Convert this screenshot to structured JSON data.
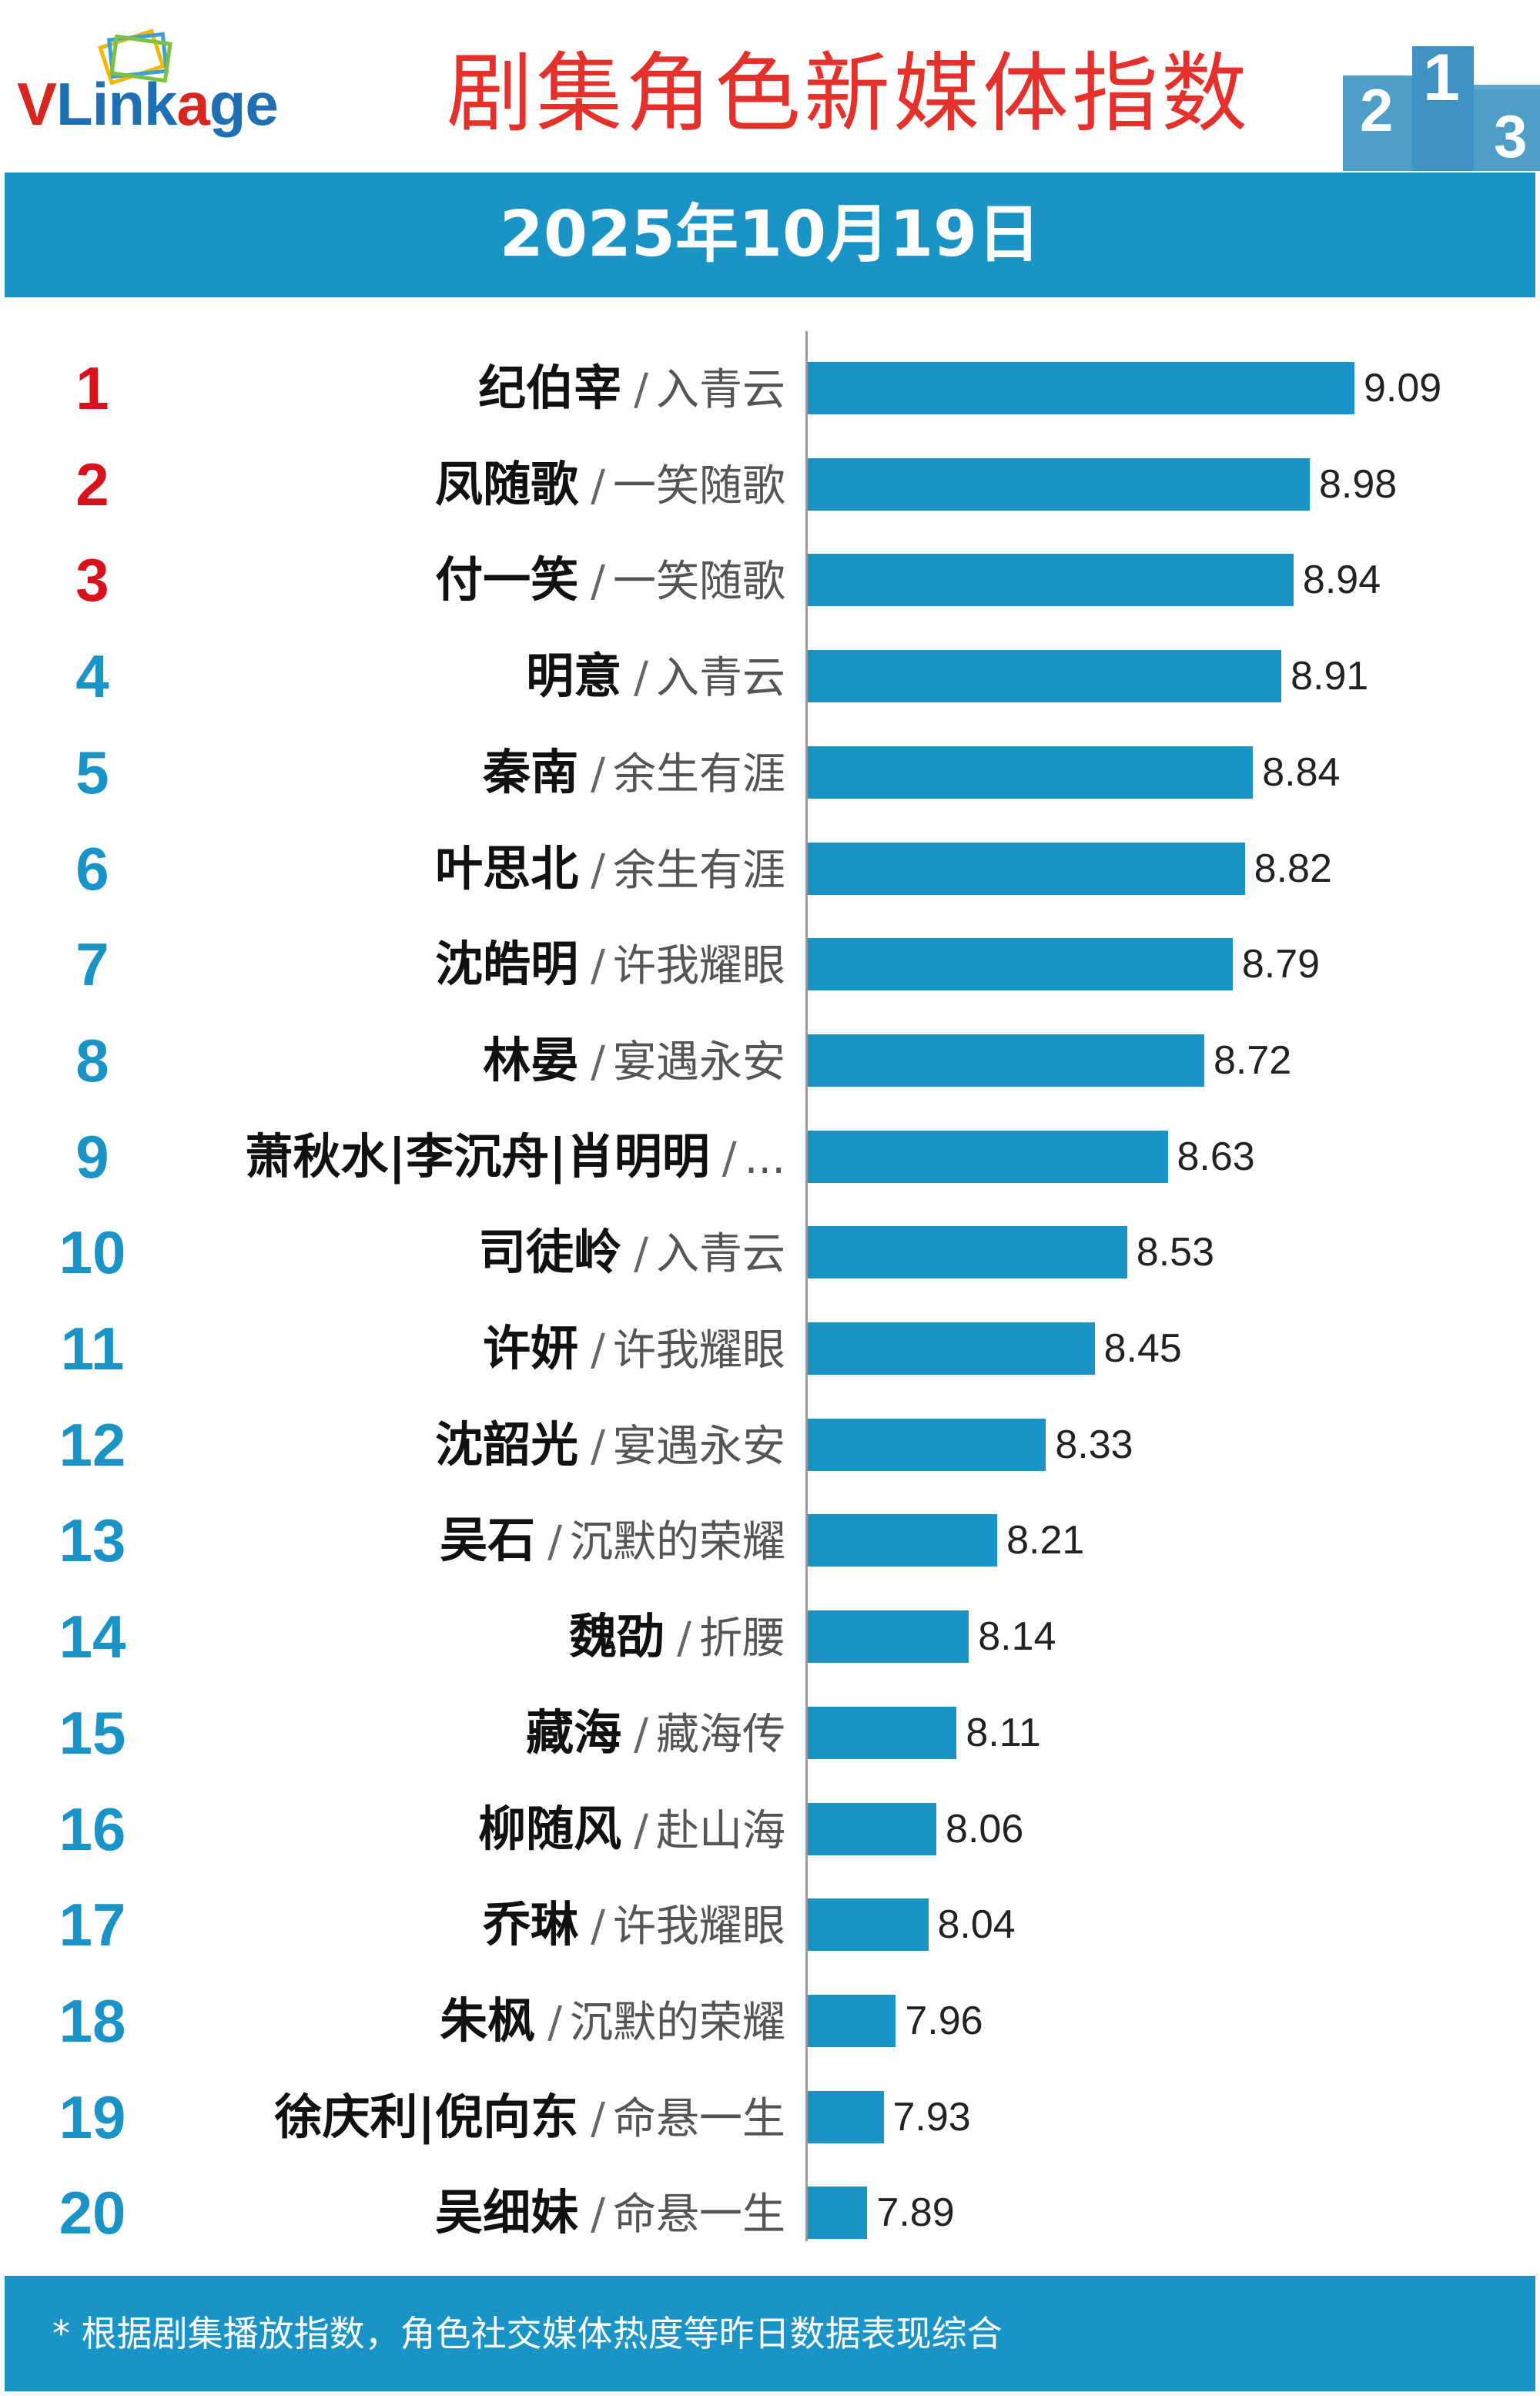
{
  "header": {
    "logo_text": "VLinkage",
    "title": "剧集角色新媒体指数",
    "date": "2025年10月19日"
  },
  "colors": {
    "accent": "#1a94c6",
    "title_red": "#e5312b",
    "top_rank_red": "#d7121c"
  },
  "footer": {
    "note": "* 根据剧集播放指数，角色社交媒体热度等昨日数据表现综合"
  },
  "chart_data": {
    "type": "bar",
    "orientation": "horizontal",
    "xlim": [
      0,
      9.09
    ],
    "rows": [
      {
        "rank": "1",
        "name": "纪伯宰",
        "show": "入青云",
        "value": 9.09
      },
      {
        "rank": "2",
        "name": "凤随歌",
        "show": "一笑随歌",
        "value": 8.98
      },
      {
        "rank": "3",
        "name": "付一笑",
        "show": "一笑随歌",
        "value": 8.94
      },
      {
        "rank": "4",
        "name": "明意",
        "show": "入青云",
        "value": 8.91
      },
      {
        "rank": "5",
        "name": "秦南",
        "show": "余生有涯",
        "value": 8.84
      },
      {
        "rank": "6",
        "name": "叶思北",
        "show": "余生有涯",
        "value": 8.82
      },
      {
        "rank": "7",
        "name": "沈皓明",
        "show": "许我耀眼",
        "value": 8.79
      },
      {
        "rank": "8",
        "name": "林晏",
        "show": "宴遇永安",
        "value": 8.72
      },
      {
        "rank": "9",
        "name": "萧秋水|李沉舟|肖明明",
        "show": "...",
        "value": 8.63
      },
      {
        "rank": "10",
        "name": "司徒岭",
        "show": "入青云",
        "value": 8.53
      },
      {
        "rank": "11",
        "name": "许妍",
        "show": "许我耀眼",
        "value": 8.45
      },
      {
        "rank": "12",
        "name": "沈韶光",
        "show": "宴遇永安",
        "value": 8.33
      },
      {
        "rank": "13",
        "name": "吴石",
        "show": "沉默的荣耀",
        "value": 8.21
      },
      {
        "rank": "14",
        "name": "魏劭",
        "show": "折腰",
        "value": 8.14
      },
      {
        "rank": "15",
        "name": "藏海",
        "show": "藏海传",
        "value": 8.11
      },
      {
        "rank": "16",
        "name": "柳随风",
        "show": "赴山海",
        "value": 8.06
      },
      {
        "rank": "17",
        "name": "乔琳",
        "show": "许我耀眼",
        "value": 8.04
      },
      {
        "rank": "18",
        "name": "朱枫",
        "show": "沉默的荣耀",
        "value": 7.96
      },
      {
        "rank": "19",
        "name": "徐庆利|倪向东",
        "show": "命悬一生",
        "value": 7.93
      },
      {
        "rank": "20",
        "name": "吴细妹",
        "show": "命悬一生",
        "value": 7.89
      }
    ]
  }
}
